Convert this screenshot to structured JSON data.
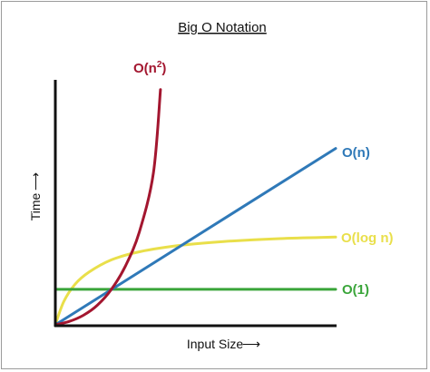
{
  "chart_data": {
    "type": "line",
    "title": "Big O Notation",
    "xlabel": "Input Size",
    "ylabel": "Time",
    "x_arrow": "⟶",
    "y_arrow": "⟶",
    "grid": false,
    "xlim": [
      0,
      10
    ],
    "ylim": [
      0,
      10
    ],
    "series": [
      {
        "name": "O(n",
        "name_sup": "2",
        "name_close": ")",
        "color": "#a3162f",
        "x": [
          0,
          0.5,
          1,
          1.5,
          2,
          2.5,
          3,
          3.5,
          3.75
        ],
        "y": [
          0,
          0.14,
          0.39,
          0.8,
          1.45,
          2.4,
          3.8,
          6.2,
          9.6
        ]
      },
      {
        "name": "O(n)",
        "color": "#2f79b8",
        "x": [
          0,
          10
        ],
        "y": [
          0,
          7.2
        ]
      },
      {
        "name": "O(log n)",
        "color": "#e9df4a",
        "x": [
          0,
          0.3,
          0.7,
          1.2,
          2,
          3,
          4.5,
          6,
          8,
          10
        ],
        "y": [
          0,
          0.95,
          1.65,
          2.15,
          2.65,
          2.98,
          3.25,
          3.4,
          3.52,
          3.58
        ]
      },
      {
        "name": "O(1)",
        "color": "#3aa53a",
        "x": [
          0,
          10
        ],
        "y": [
          1.45,
          1.45
        ]
      }
    ]
  }
}
